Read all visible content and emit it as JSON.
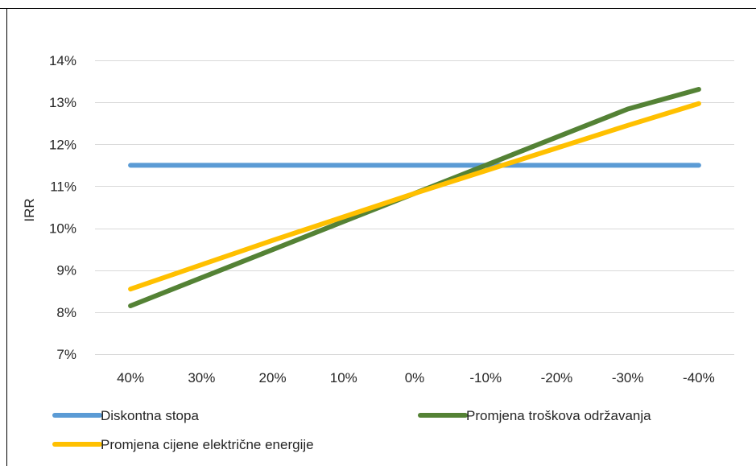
{
  "chart_data": {
    "type": "line",
    "title": "",
    "xlabel": "",
    "ylabel": "IRR",
    "categories": [
      "40%",
      "30%",
      "20%",
      "10%",
      "0%",
      "-10%",
      "-20%",
      "-30%",
      "-40%"
    ],
    "ylim": [
      7,
      14
    ],
    "yticks": [
      7,
      8,
      9,
      10,
      11,
      12,
      13,
      14
    ],
    "ytick_labels": [
      "7%",
      "8%",
      "9%",
      "10%",
      "11%",
      "12%",
      "13%",
      "14%"
    ],
    "grid": "horizontal",
    "legend_position": "bottom",
    "series": [
      {
        "name": "Diskontna stopa",
        "color": "#5B9BD5",
        "values": [
          11.5,
          11.5,
          11.5,
          11.5,
          11.5,
          11.5,
          11.5,
          11.5,
          11.5
        ]
      },
      {
        "name": "Promjena troškova održavanja",
        "color": "#548235",
        "values": [
          8.15,
          8.82,
          9.49,
          10.16,
          10.83,
          11.5,
          12.17,
          12.84,
          13.31
        ]
      },
      {
        "name": "Promjena cijene električne energije",
        "color": "#FFC000",
        "values": [
          8.55,
          9.13,
          9.71,
          10.27,
          10.83,
          11.37,
          11.91,
          12.45,
          12.97
        ]
      }
    ]
  }
}
